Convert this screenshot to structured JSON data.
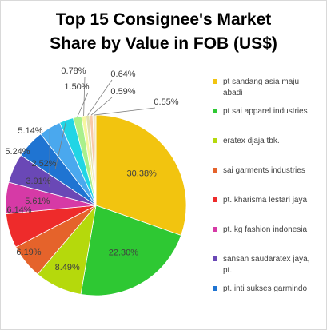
{
  "chart_data": {
    "type": "pie",
    "title_lines": [
      "Top 15 Consignee's Market",
      "Share by Value in FOB (US$)"
    ],
    "slices": [
      {
        "label": "pt sandang asia maju abadi",
        "legend_lines": [
          "pt sandang asia maju",
          "abadi"
        ],
        "value": 30.38,
        "display": "30.38%",
        "color": "#f2c40f"
      },
      {
        "label": "pt sai apparel industries",
        "legend_lines": [
          "pt sai apparel industries"
        ],
        "value": 22.3,
        "display": "22.30%",
        "color": "#2ec833"
      },
      {
        "label": "eratex djaja tbk.",
        "legend_lines": [
          "eratex djaja tbk."
        ],
        "value": 8.49,
        "display": "8.49%",
        "color": "#b5d90c"
      },
      {
        "label": "sai garments industries",
        "legend_lines": [
          "sai garments industries"
        ],
        "value": 6.19,
        "display": "6.19%",
        "color": "#e5632b"
      },
      {
        "label": "pt. kharisma lestari jaya",
        "legend_lines": [
          "pt. kharisma lestari jaya"
        ],
        "value": 6.14,
        "display": "6.14%",
        "color": "#ee2b2b"
      },
      {
        "label": "pt. kg fashion indonesia",
        "legend_lines": [
          "pt. kg fashion indonesia"
        ],
        "value": 5.61,
        "display": "5.61%",
        "color": "#d63aa6"
      },
      {
        "label": "sansan saudaratex jaya, pt.",
        "legend_lines": [
          "sansan saudaratex jaya,",
          "pt."
        ],
        "value": 5.24,
        "display": "5.24%",
        "color": "#6a48b6"
      },
      {
        "label": "pt. inti sukses garmindo",
        "legend_lines": [
          "pt. inti sukses garmindo"
        ],
        "value": 5.14,
        "display": "5.14%",
        "color": "#1f74d2"
      },
      {
        "label": "",
        "value": 3.91,
        "display": "3.91%",
        "color": "#4aa8ee"
      },
      {
        "label": "",
        "value": 2.52,
        "display": "2.52%",
        "color": "#21d5e5"
      },
      {
        "label": "",
        "value": 1.5,
        "display": "1.50%",
        "color": "#a9f08c"
      },
      {
        "label": "",
        "value": 0.78,
        "display": "0.78%",
        "color": "#f6f6a0"
      },
      {
        "label": "",
        "value": 0.64,
        "display": "0.64%",
        "color": "#e2e0ad"
      },
      {
        "label": "",
        "value": 0.59,
        "display": "0.59%",
        "color": "#f9c9a8"
      },
      {
        "label": "",
        "value": 0.55,
        "display": "0.55%",
        "color": "#f3e9c4"
      }
    ],
    "legend_placement": "right"
  }
}
